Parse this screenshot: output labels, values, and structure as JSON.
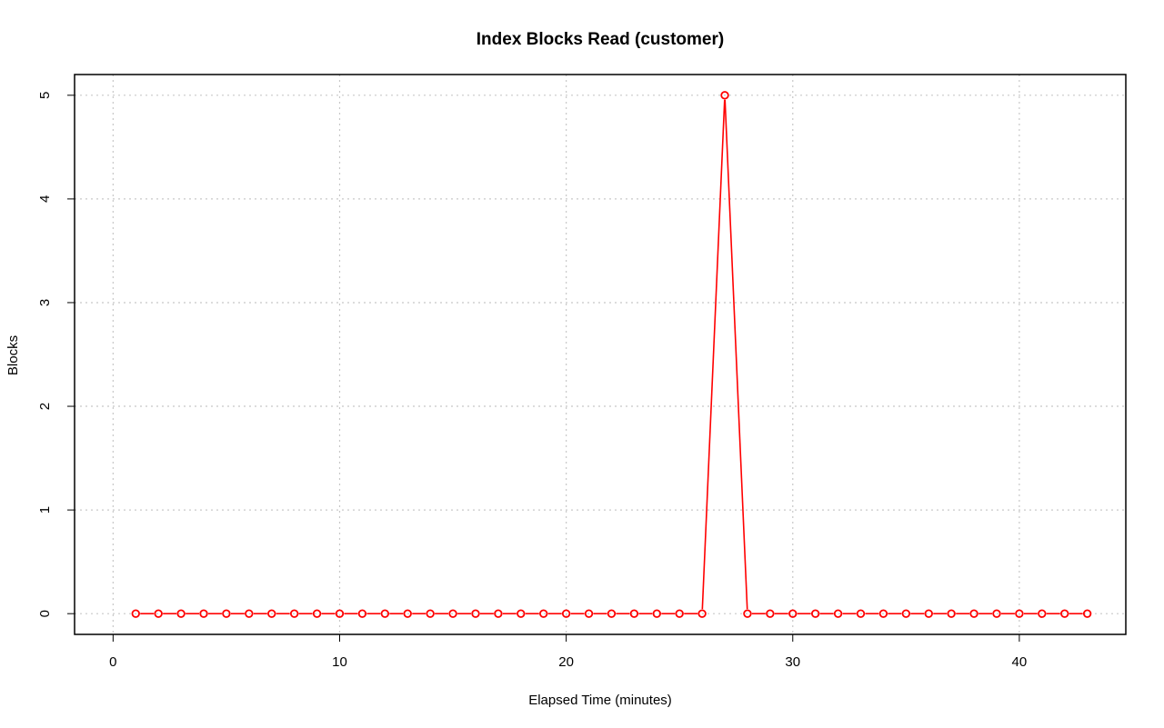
{
  "chart_data": {
    "type": "line",
    "title": "Index Blocks Read (customer)",
    "xlabel": "Elapsed Time (minutes)",
    "ylabel": "Blocks",
    "xlim": [
      -1.7,
      44.7
    ],
    "ylim": [
      -0.2,
      5.2
    ],
    "x_ticks": [
      0,
      10,
      20,
      30,
      40
    ],
    "y_ticks": [
      0,
      1,
      2,
      3,
      4,
      5
    ],
    "grid": true,
    "series": [
      {
        "color": "#ff0000",
        "marker": "open-circle",
        "x": [
          1,
          2,
          3,
          4,
          5,
          6,
          7,
          8,
          9,
          10,
          11,
          12,
          13,
          14,
          15,
          16,
          17,
          18,
          19,
          20,
          21,
          22,
          23,
          24,
          25,
          26,
          27,
          28,
          29,
          30,
          31,
          32,
          33,
          34,
          35,
          36,
          37,
          38,
          39,
          40,
          41,
          42,
          43
        ],
        "y": [
          0,
          0,
          0,
          0,
          0,
          0,
          0,
          0,
          0,
          0,
          0,
          0,
          0,
          0,
          0,
          0,
          0,
          0,
          0,
          0,
          0,
          0,
          0,
          0,
          0,
          0,
          5,
          0,
          0,
          0,
          0,
          0,
          0,
          0,
          0,
          0,
          0,
          0,
          0,
          0,
          0,
          0,
          0
        ]
      }
    ]
  }
}
